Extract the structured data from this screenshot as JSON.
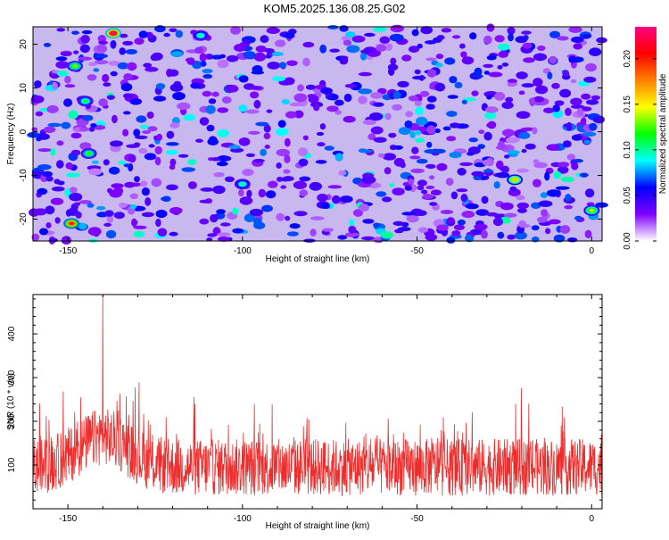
{
  "title": "KOM5.2025.136.08.25.G02",
  "chart_data": [
    {
      "type": "heatmap",
      "xlabel": "Height of straight line (km)",
      "ylabel": "Frequency (Hz)",
      "xlim": [
        -160,
        3
      ],
      "ylim": [
        -25,
        24
      ],
      "xticks": [
        -150,
        -100,
        -50,
        0
      ],
      "yticks": [
        -20,
        -10,
        0,
        10,
        20
      ],
      "colorbar": {
        "label": "Normalized spectral amplitude",
        "range": [
          0,
          0.235
        ],
        "ticks": [
          "0.00",
          "0.05",
          "0.10",
          "0.15",
          "0.20"
        ],
        "colormap": [
          "#ffffff",
          "#8000ff",
          "#0000ff",
          "#00ffff",
          "#00ff00",
          "#ffff00",
          "#ff8000",
          "#ff0000",
          "#ff0080"
        ]
      },
      "hotspots": [
        {
          "x": -137,
          "y": 22.5,
          "v": 0.23
        },
        {
          "x": -149,
          "y": -21,
          "v": 0.2
        },
        {
          "x": -148,
          "y": 15,
          "v": 0.13
        },
        {
          "x": -144,
          "y": -5,
          "v": 0.12
        },
        {
          "x": -145,
          "y": 7,
          "v": 0.11
        },
        {
          "x": -22,
          "y": -11,
          "v": 0.16
        },
        {
          "x": 0,
          "y": -18,
          "v": 0.14
        },
        {
          "x": -112,
          "y": 22,
          "v": 0.1
        },
        {
          "x": -100,
          "y": -12,
          "v": 0.1
        }
      ]
    },
    {
      "type": "line",
      "xlabel": "Height of straight line (km)",
      "ylabel": "SNR (10 * v/v)",
      "xlim": [
        -160,
        3
      ],
      "ylim": [
        0,
        490
      ],
      "xticks": [
        -150,
        -100,
        -50,
        0
      ],
      "yticks": [
        100,
        200,
        300,
        400
      ],
      "color": "#ee2c2c",
      "peak": {
        "x": -140,
        "y": 490
      }
    }
  ]
}
